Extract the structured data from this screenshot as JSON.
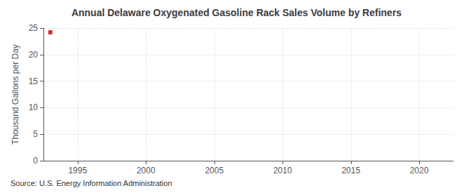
{
  "chart_data": {
    "type": "scatter",
    "title": "Annual Delaware Oxygenated Gasoline Rack Sales Volume by Refiners",
    "ylabel": "Thousand Gallons per Day",
    "annotations": [
      "Source: U.S. Energy Information Administration"
    ],
    "x": [
      1993
    ],
    "values": [
      24.2
    ],
    "color": "#cc0000",
    "marker": "square",
    "xlim": [
      1992.5,
      2022.5
    ],
    "xticks": [
      1995,
      2000,
      2005,
      2010,
      2015,
      2020
    ],
    "ylim": [
      0,
      25
    ],
    "yticks": [
      0,
      5,
      10,
      15,
      20,
      25
    ],
    "grid": true
  }
}
